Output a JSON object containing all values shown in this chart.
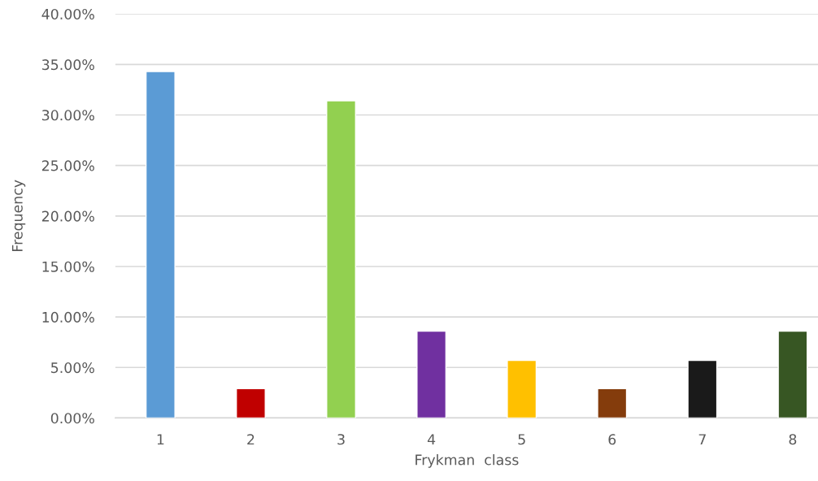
{
  "chart_data": {
    "type": "bar",
    "xlabel": "Frykman  class",
    "ylabel": "Frequency",
    "categories": [
      "1",
      "2",
      "3",
      "4",
      "5",
      "6",
      "7",
      "8"
    ],
    "values": [
      34.3,
      2.9,
      31.4,
      8.6,
      5.7,
      2.9,
      5.7,
      8.6
    ],
    "colors": [
      "#5b9bd5",
      "#c00000",
      "#92d050",
      "#7030a0",
      "#ffc000",
      "#843c0c",
      "#1a1a1a",
      "#375623"
    ],
    "ylim": [
      0,
      40
    ],
    "yticks": [
      {
        "value": 0,
        "label": "0.00%"
      },
      {
        "value": 5,
        "label": "5.00%"
      },
      {
        "value": 10,
        "label": "10.00%"
      },
      {
        "value": 15,
        "label": "15.00%"
      },
      {
        "value": 20,
        "label": "20.00%"
      },
      {
        "value": 25,
        "label": "25.00%"
      },
      {
        "value": 30,
        "label": "30.00%"
      },
      {
        "value": 35,
        "label": "35.00%"
      },
      {
        "value": 40,
        "label": "40.00%"
      }
    ],
    "grid": "y"
  }
}
